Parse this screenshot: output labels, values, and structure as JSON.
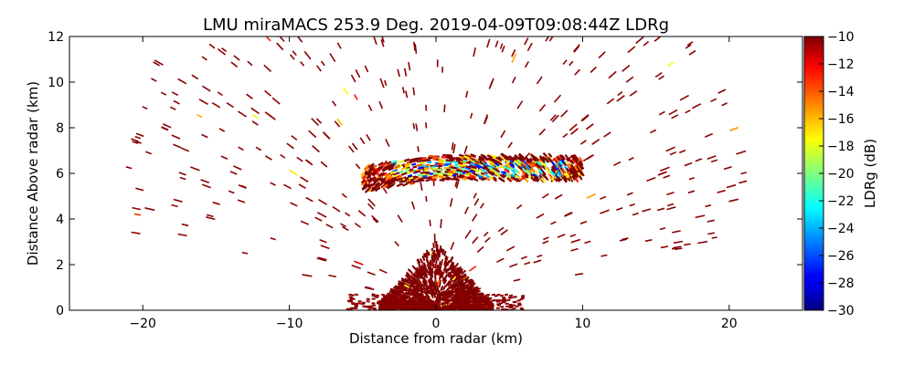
{
  "chart_data": {
    "type": "heatmap",
    "title": "LMU miraMACS 253.9 Deg. 2019-04-09T09:08:44Z  LDRg",
    "xlabel": "Distance from radar (km)",
    "ylabel": "Distance Above radar  (km)",
    "xlim": [
      -25,
      25
    ],
    "ylim": [
      0,
      12
    ],
    "x_ticks": [
      -20,
      -10,
      0,
      10,
      20
    ],
    "y_ticks": [
      0,
      2,
      4,
      6,
      8,
      10,
      12
    ],
    "colorbar": {
      "label": "LDRg (dB)",
      "range": [
        -30,
        -10
      ],
      "ticks": [
        -10,
        -12,
        -14,
        -16,
        -18,
        -20,
        -22,
        -24,
        -26,
        -28,
        -30
      ],
      "colormap": "jet"
    },
    "scan": {
      "type": "RHI",
      "azimuth_deg": 253.9,
      "max_range_km": 22,
      "min_elevation_deg": 9
    },
    "features": [
      {
        "name": "near-radar clutter",
        "x_range": [
          -4,
          4
        ],
        "y_range": [
          0,
          3
        ],
        "ldr_db": -10
      },
      {
        "name": "melting-layer band",
        "x_range": [
          -5,
          10
        ],
        "y_range": [
          5.3,
          6.9
        ],
        "ldr_db_range": [
          -28,
          -12
        ]
      },
      {
        "name": "sparse echoes",
        "extent": "full scan",
        "ldr_db": -10
      }
    ]
  },
  "colors": {
    "background": "#ffffff",
    "axis": "#000000",
    "dominant_echo": "#8b0000"
  }
}
